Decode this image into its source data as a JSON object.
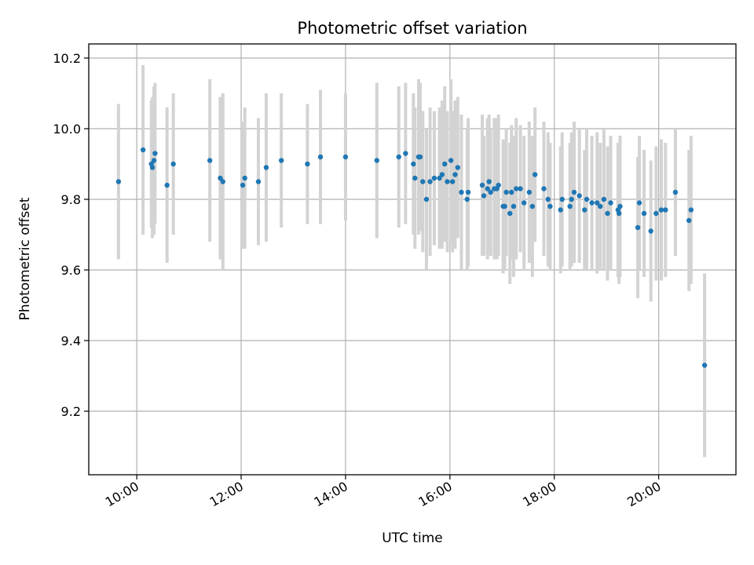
{
  "chart_data": {
    "type": "scatter",
    "title": "Photometric offset variation",
    "xlabel": "UTC time",
    "ylabel": "Photometric offset",
    "xlim": [
      9.08,
      21.48
    ],
    "ylim": [
      9.02,
      10.24
    ],
    "grid": true,
    "x_ticks": [
      {
        "value": 10,
        "label": "10:00"
      },
      {
        "value": 12,
        "label": "12:00"
      },
      {
        "value": 14,
        "label": "14:00"
      },
      {
        "value": 16,
        "label": "16:00"
      },
      {
        "value": 18,
        "label": "18:00"
      },
      {
        "value": 20,
        "label": "20:00"
      }
    ],
    "y_ticks": [
      {
        "value": 9.2,
        "label": "9.2"
      },
      {
        "value": 9.4,
        "label": "9.4"
      },
      {
        "value": 9.6,
        "label": "9.6"
      },
      {
        "value": 9.8,
        "label": "9.8"
      },
      {
        "value": 10.0,
        "label": "10.0"
      },
      {
        "value": 10.2,
        "label": "10.2"
      }
    ],
    "colors": {
      "point": "#1f77b4",
      "errorbar": "#d3d3d3",
      "grid": "#b0b0b0"
    },
    "series": [
      {
        "name": "offset",
        "x": [
          9.65,
          10.12,
          10.28,
          10.3,
          10.33,
          10.35,
          10.58,
          10.7,
          11.4,
          11.6,
          11.65,
          12.03,
          12.07,
          12.33,
          12.48,
          12.77,
          13.27,
          13.52,
          14.0,
          14.6,
          15.02,
          15.15,
          15.3,
          15.33,
          15.4,
          15.43,
          15.48,
          15.55,
          15.62,
          15.7,
          15.8,
          15.85,
          15.9,
          15.95,
          16.02,
          16.05,
          16.1,
          16.15,
          16.22,
          16.33,
          16.35,
          16.62,
          16.65,
          16.72,
          16.75,
          16.78,
          16.85,
          16.9,
          16.93,
          17.02,
          17.05,
          17.08,
          17.15,
          17.18,
          17.22,
          17.27,
          17.35,
          17.42,
          17.52,
          17.58,
          17.63,
          17.8,
          17.88,
          17.92,
          18.12,
          18.15,
          18.3,
          18.33,
          18.38,
          18.48,
          18.58,
          18.62,
          18.72,
          18.82,
          18.88,
          18.95,
          19.02,
          19.08,
          19.22,
          19.24,
          19.26,
          19.6,
          19.63,
          19.72,
          19.85,
          19.95,
          20.05,
          20.13,
          20.32,
          20.58,
          20.62,
          20.88
        ],
        "y": [
          9.85,
          9.94,
          9.9,
          9.89,
          9.91,
          9.93,
          9.84,
          9.9,
          9.91,
          9.86,
          9.85,
          9.84,
          9.86,
          9.85,
          9.89,
          9.91,
          9.9,
          9.92,
          9.92,
          9.91,
          9.92,
          9.93,
          9.9,
          9.86,
          9.92,
          9.92,
          9.85,
          9.8,
          9.85,
          9.86,
          9.86,
          9.87,
          9.9,
          9.85,
          9.91,
          9.85,
          9.87,
          9.89,
          9.82,
          9.8,
          9.82,
          9.84,
          9.81,
          9.83,
          9.85,
          9.82,
          9.83,
          9.83,
          9.84,
          9.78,
          9.78,
          9.82,
          9.76,
          9.82,
          9.78,
          9.83,
          9.83,
          9.79,
          9.82,
          9.78,
          9.87,
          9.83,
          9.8,
          9.78,
          9.77,
          9.8,
          9.78,
          9.8,
          9.82,
          9.81,
          9.77,
          9.8,
          9.79,
          9.79,
          9.78,
          9.8,
          9.76,
          9.79,
          9.77,
          9.76,
          9.78,
          9.72,
          9.79,
          9.76,
          9.71,
          9.76,
          9.77,
          9.77,
          9.82,
          9.74,
          9.77,
          9.33
        ],
        "err": [
          0.22,
          0.24,
          0.18,
          0.2,
          0.21,
          0.2,
          0.22,
          0.2,
          0.23,
          0.23,
          0.25,
          0.18,
          0.2,
          0.18,
          0.21,
          0.19,
          0.17,
          0.19,
          0.18,
          0.22,
          0.2,
          0.2,
          0.2,
          0.2,
          0.22,
          0.21,
          0.2,
          0.2,
          0.21,
          0.19,
          0.2,
          0.21,
          0.22,
          0.2,
          0.23,
          0.2,
          0.21,
          0.2,
          0.22,
          0.2,
          0.21,
          0.2,
          0.17,
          0.2,
          0.19,
          0.18,
          0.2,
          0.2,
          0.2,
          0.19,
          0.18,
          0.18,
          0.2,
          0.19,
          0.2,
          0.2,
          0.18,
          0.19,
          0.2,
          0.2,
          0.19,
          0.19,
          0.19,
          0.18,
          0.18,
          0.19,
          0.18,
          0.19,
          0.2,
          0.19,
          0.17,
          0.2,
          0.19,
          0.2,
          0.18,
          0.2,
          0.19,
          0.19,
          0.19,
          0.2,
          0.2,
          0.2,
          0.19,
          0.18,
          0.2,
          0.19,
          0.2,
          0.19,
          0.18,
          0.2,
          0.21,
          0.26
        ]
      }
    ]
  }
}
